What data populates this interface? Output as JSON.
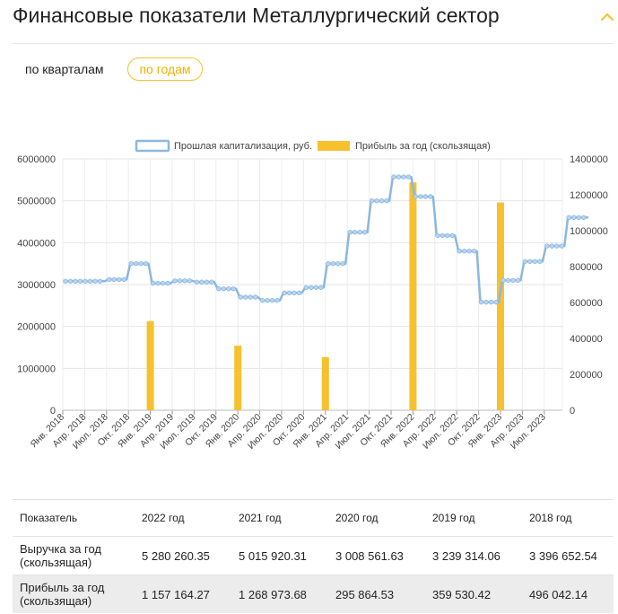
{
  "header": {
    "title": "Финансовые показатели Металлургический сектор"
  },
  "tabs": [
    {
      "label": "по кварталам",
      "active": false
    },
    {
      "label": "по годам",
      "active": true
    }
  ],
  "colors": {
    "line": "#8bb8e0",
    "bar": "#f7c12e",
    "accent": "#f5c330"
  },
  "chart_data": {
    "type": "bar+line",
    "legend": [
      "Прошлая капитализация, руб.",
      "Прибыль за год (скользящая)"
    ],
    "legend_position": "top",
    "grid": true,
    "x": [
      "Янв. 2018",
      "Апр. 2018",
      "Июл. 2018",
      "Окт. 2018",
      "Янв. 2019",
      "Апр. 2019",
      "Июл. 2019",
      "Окт. 2019",
      "Янв. 2020",
      "Апр. 2020",
      "Июл. 2020",
      "Окт. 2020",
      "Янв. 2021",
      "Апр. 2021",
      "Июл. 2021",
      "Окт. 2021",
      "Янв. 2022",
      "Апр. 2022",
      "Июл. 2022",
      "Окт. 2022",
      "Янв. 2023",
      "Апр. 2023",
      "Июл. 2023"
    ],
    "y_left": {
      "ticks": [
        "6000000",
        "5000000",
        "4000000",
        "3000000",
        "2000000",
        "1000000",
        "0"
      ],
      "range": [
        0,
        6000000
      ]
    },
    "y_right": {
      "ticks": [
        "1400000",
        "1200000",
        "1000000",
        "800000",
        "600000",
        "400000",
        "200000",
        "0"
      ],
      "range": [
        0,
        1400000
      ]
    },
    "series": [
      {
        "name": "Прошлая капитализация, руб.",
        "axis": "left",
        "type": "line",
        "steps": [
          {
            "from": "Янв. 2018",
            "value": 3080000
          },
          {
            "from": "Июл. 2018",
            "value": 3120000
          },
          {
            "from": "Окт. 2018",
            "value": 3500000
          },
          {
            "from": "Янв. 2019",
            "value": 3030000
          },
          {
            "from": "Апр. 2019",
            "value": 3090000
          },
          {
            "from": "Июл. 2019",
            "value": 3060000
          },
          {
            "from": "Окт. 2019",
            "value": 2900000
          },
          {
            "from": "Янв. 2020",
            "value": 2700000
          },
          {
            "from": "Апр. 2020",
            "value": 2620000
          },
          {
            "from": "Июл. 2020",
            "value": 2800000
          },
          {
            "from": "Окт. 2020",
            "value": 2930000
          },
          {
            "from": "Янв. 2021",
            "value": 3500000
          },
          {
            "from": "Апр. 2021",
            "value": 4250000
          },
          {
            "from": "Июл. 2021",
            "value": 5000000
          },
          {
            "from": "Окт. 2021",
            "value": 5570000
          },
          {
            "from": "Янв. 2022",
            "value": 5100000
          },
          {
            "from": "Апр. 2022",
            "value": 4170000
          },
          {
            "from": "Июл. 2022",
            "value": 3800000
          },
          {
            "from": "Окт. 2022",
            "value": 2580000
          },
          {
            "from": "Янв. 2023",
            "value": 3100000
          },
          {
            "from": "Апр. 2023",
            "value": 3550000
          },
          {
            "from": "Июл. 2023",
            "value": 3920000
          },
          {
            "from": "Окт. 2023",
            "value": 4600000
          }
        ]
      },
      {
        "name": "Прибыль за год (скользящая)",
        "axis": "right",
        "type": "bar",
        "points": [
          {
            "x": "Янв. 2019",
            "value": 496042.14
          },
          {
            "x": "Янв. 2020",
            "value": 359530.42
          },
          {
            "x": "Янв. 2021",
            "value": 295864.53
          },
          {
            "x": "Янв. 2022",
            "value": 1268973.68
          },
          {
            "x": "Янв. 2023",
            "value": 1157164.27
          }
        ]
      }
    ]
  },
  "table": {
    "headers": [
      "Показатель",
      "2022 год",
      "2021 год",
      "2020 год",
      "2019 год",
      "2018 год"
    ],
    "rows": [
      {
        "label": "Выручка за год (скользящая)",
        "values": [
          "5 280 260.35",
          "5 015 920.31",
          "3 008 561.63",
          "3 239 314.06",
          "3 396 652.54"
        ]
      },
      {
        "label": "Прибыль за год (скользящая)",
        "values": [
          "1 157 164.27",
          "1 268 973.68",
          "295 864.53",
          "359 530.42",
          "496 042.14"
        ]
      }
    ]
  }
}
